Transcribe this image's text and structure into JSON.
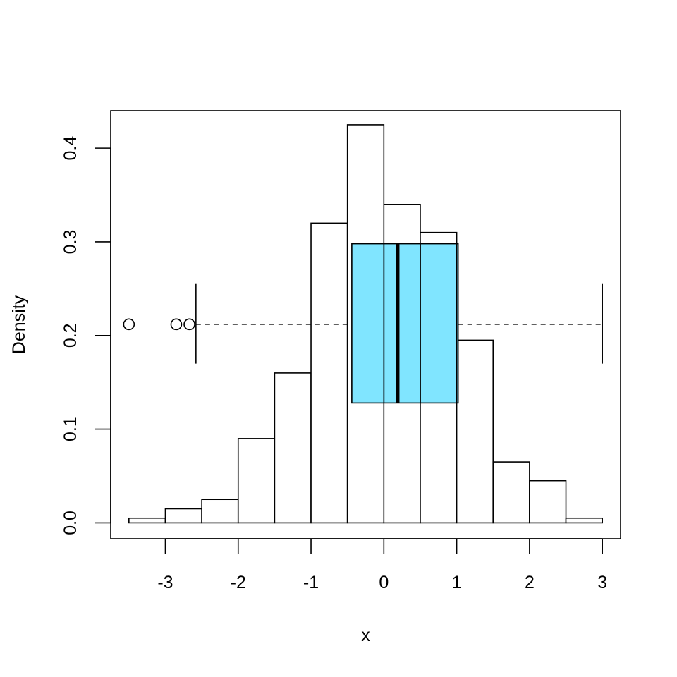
{
  "chart_data": {
    "type": "histogram+boxplot",
    "xlabel": "x",
    "ylabel": "Density",
    "xlim": [
      -3.75,
      3.25
    ],
    "ylim": [
      -0.017,
      0.44
    ],
    "x_ticks": [
      -3,
      -2,
      -1,
      0,
      1,
      2,
      3
    ],
    "x_tick_labels": [
      "-3",
      "-2",
      "-1",
      "0",
      "1",
      "2",
      "3"
    ],
    "y_ticks": [
      0.0,
      0.1,
      0.2,
      0.3,
      0.4
    ],
    "y_tick_labels": [
      "0.0",
      "0.1",
      "0.2",
      "0.3",
      "0.4"
    ],
    "histogram": {
      "bins": [
        {
          "from": -3.5,
          "to": -3.0,
          "density": 0.005
        },
        {
          "from": -3.0,
          "to": -2.5,
          "density": 0.015
        },
        {
          "from": -2.5,
          "to": -2.0,
          "density": 0.025
        },
        {
          "from": -2.0,
          "to": -1.5,
          "density": 0.09
        },
        {
          "from": -1.5,
          "to": -1.0,
          "density": 0.16
        },
        {
          "from": -1.0,
          "to": -0.5,
          "density": 0.32
        },
        {
          "from": -0.5,
          "to": 0.0,
          "density": 0.425
        },
        {
          "from": 0.0,
          "to": 0.5,
          "density": 0.34
        },
        {
          "from": 0.5,
          "to": 1.0,
          "density": 0.31
        },
        {
          "from": 1.0,
          "to": 1.5,
          "density": 0.195
        },
        {
          "from": 1.5,
          "to": 2.0,
          "density": 0.065
        },
        {
          "from": 2.0,
          "to": 2.5,
          "density": 0.045
        },
        {
          "from": 2.5,
          "to": 3.0,
          "density": 0.005
        }
      ],
      "fill": "#ffffff"
    },
    "boxplot": {
      "horizontal": true,
      "center_y": 0.212,
      "box_bottom_y": 0.128,
      "box_top_y": 0.298,
      "staple_bottom_y": 0.17,
      "staple_top_y": 0.255,
      "whisker_low": -2.58,
      "q1": -0.44,
      "median": 0.19,
      "q3": 1.02,
      "whisker_high": 3.0,
      "outliers": [
        -3.5,
        -2.85,
        -2.67
      ],
      "fill": "#80E5FF"
    }
  }
}
